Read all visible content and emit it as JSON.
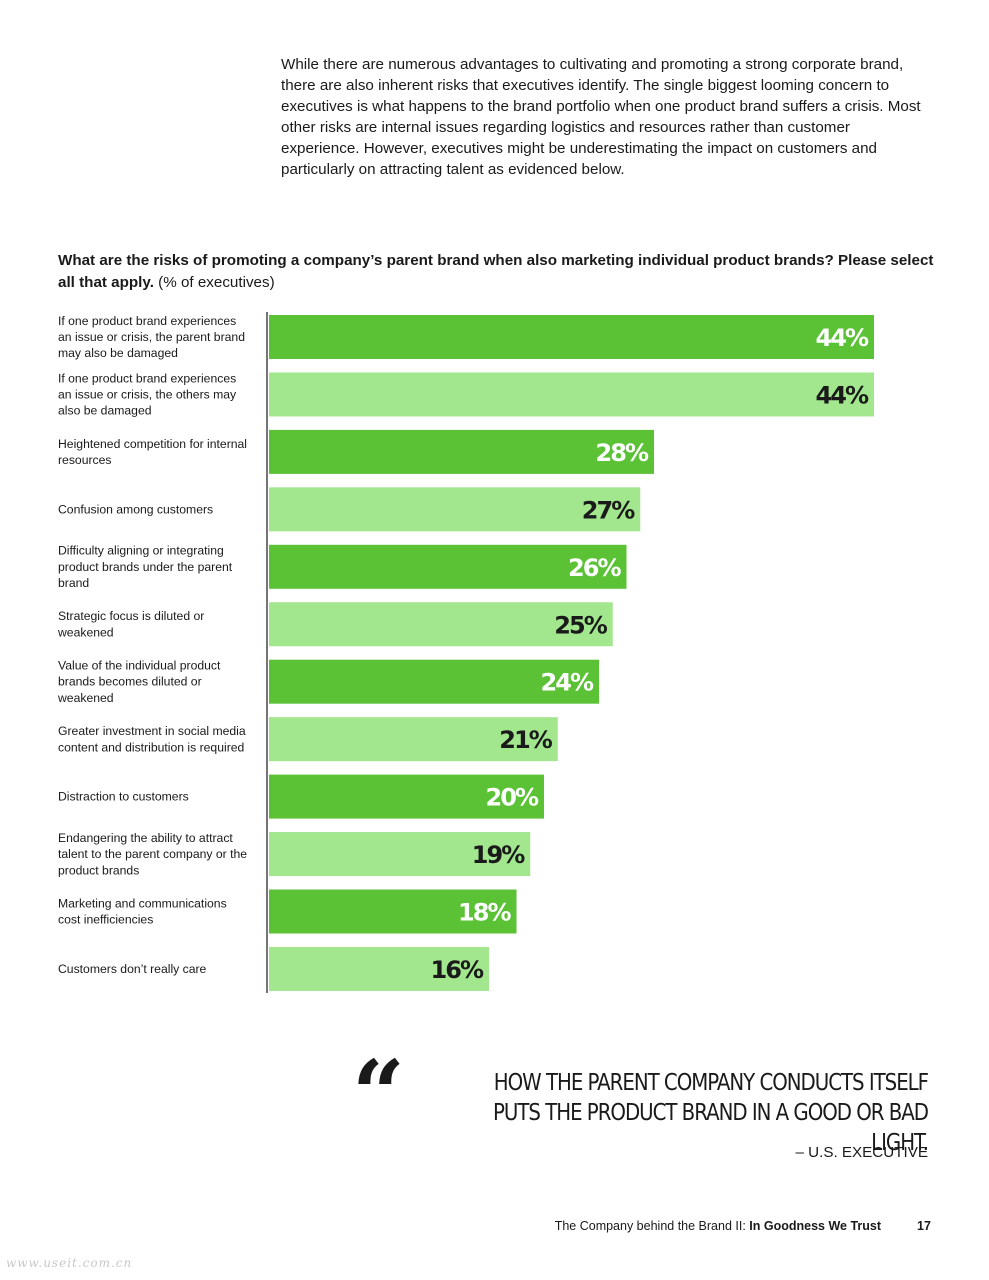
{
  "intro": "While there are numerous advantages to cultivating and promoting a strong corporate brand, there are also inherent risks that executives identify. The single biggest looming concern to executives is what happens to the brand portfolio when one product brand suffers a crisis. Most other risks are internal issues regarding logistics and resources rather than customer experience. However, executives might be underestimating the impact on customers and particularly on attracting talent as evidenced below.",
  "question": {
    "bold": "What are the risks of promoting a company’s parent brand when also marketing individual product brands? Please select all that apply.",
    "unit": "(% of executives)"
  },
  "chart_data": {
    "type": "bar",
    "orientation": "horizontal",
    "categories": [
      [
        "If one product brand experiences",
        "an issue or crisis, the parent brand",
        "may also be damaged"
      ],
      [
        "If one product brand experiences",
        "an issue or crisis, the others may",
        "also be damaged"
      ],
      [
        "Heightened competition for internal",
        "resources"
      ],
      [
        "Confusion among customers"
      ],
      [
        "Difficulty aligning or integrating",
        "product brands under the parent",
        "brand"
      ],
      [
        "Strategic focus is diluted or",
        "weakened"
      ],
      [
        "Value of the individual product",
        "brands becomes diluted or",
        "weakened"
      ],
      [
        "Greater investment in social media",
        "content and distribution is required"
      ],
      [
        "Distraction to customers"
      ],
      [
        "Endangering the ability to attract",
        "talent to the parent company or the",
        "product brands"
      ],
      [
        "Marketing and communications",
        "cost inefficiencies"
      ],
      [
        "Customers don’t really care"
      ]
    ],
    "values": [
      44,
      44,
      28,
      27,
      26,
      25,
      24,
      21,
      20,
      19,
      18,
      16
    ],
    "value_labels": [
      "44%",
      "44%",
      "28%",
      "27%",
      "26%",
      "25%",
      "24%",
      "21%",
      "20%",
      "19%",
      "18%",
      "16%"
    ],
    "colors": {
      "dark": "#5bc236",
      "light": "#a2e68e",
      "dark_text": "#ffffff",
      "light_text": "#1a1a1a",
      "axis": "#1a1a1a"
    },
    "xlim": [
      0,
      44
    ]
  },
  "quote": {
    "mark": "“",
    "text": "How the parent company conducts itself puts the product brand in a good or bad light.",
    "source": "– U.S. EXECUTIVE"
  },
  "footer": {
    "text": "The Company behind the Brand II: ",
    "bold": "In Goodness We Trust",
    "page": "17"
  },
  "watermark": "www.useit.com.cn"
}
